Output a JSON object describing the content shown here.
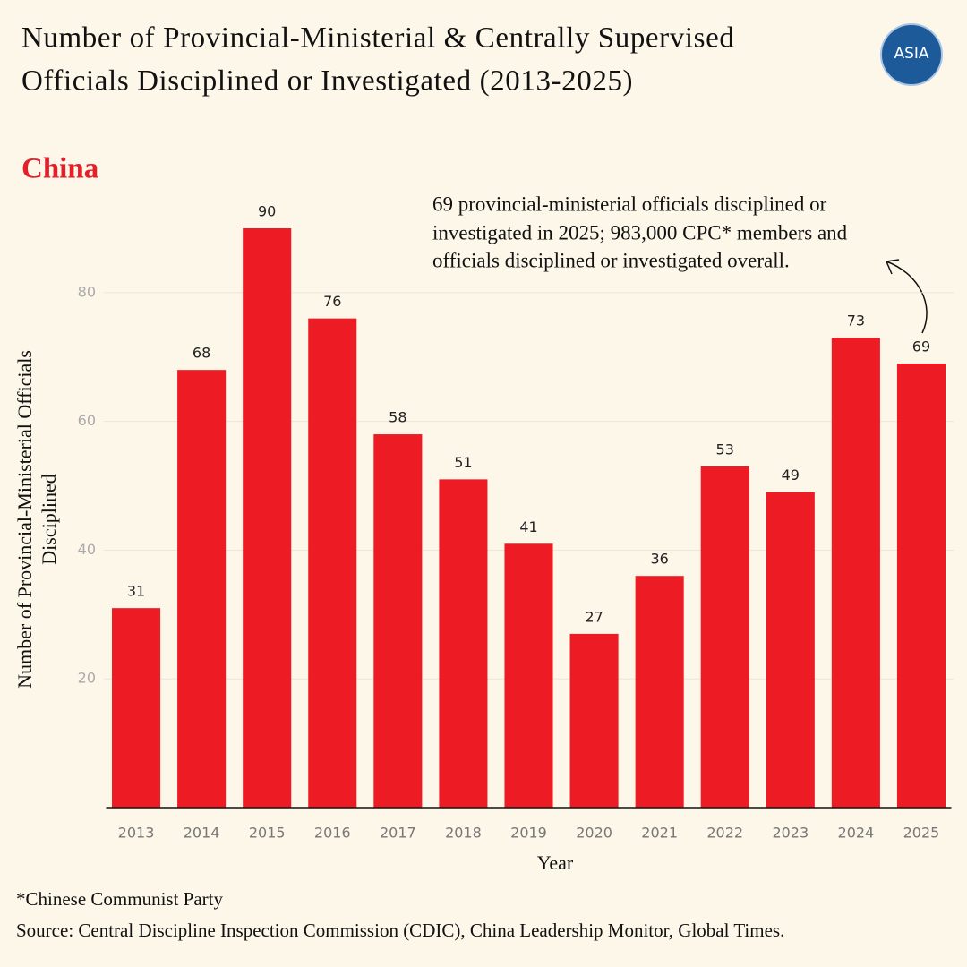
{
  "chart_data": {
    "type": "bar",
    "title": [
      "Number of Provincial-Ministerial & Centrally Supervised",
      "Officials Disciplined or Investigated (2013-2025)"
    ],
    "subtitle": "China",
    "logo": "ASIA",
    "annotation": [
      "69 provincial-ministerial officials disciplined or",
      "investigated in 2025; 983,000 CPC* members and",
      "officials disciplined or investigated overall."
    ],
    "x_label": "Year",
    "y_label": [
      "Number of Provincial-Ministerial Officials",
      "Disciplined"
    ],
    "categories": [
      "2013",
      "2014",
      "2015",
      "2016",
      "2017",
      "2018",
      "2019",
      "2020",
      "2021",
      "2022",
      "2023",
      "2024",
      "2025"
    ],
    "values": [
      31,
      68,
      90,
      76,
      58,
      51,
      41,
      27,
      36,
      53,
      49,
      73,
      69
    ],
    "color": "#ed1c24",
    "ylim": [
      0,
      90
    ],
    "yticks": [
      20,
      40,
      60,
      80
    ],
    "grid": true,
    "footnotes": [
      "*Chinese Communist Party",
      "Source: Central Discipline Inspection Commission (CDIC), China Leadership Monitor, Global Times."
    ]
  }
}
